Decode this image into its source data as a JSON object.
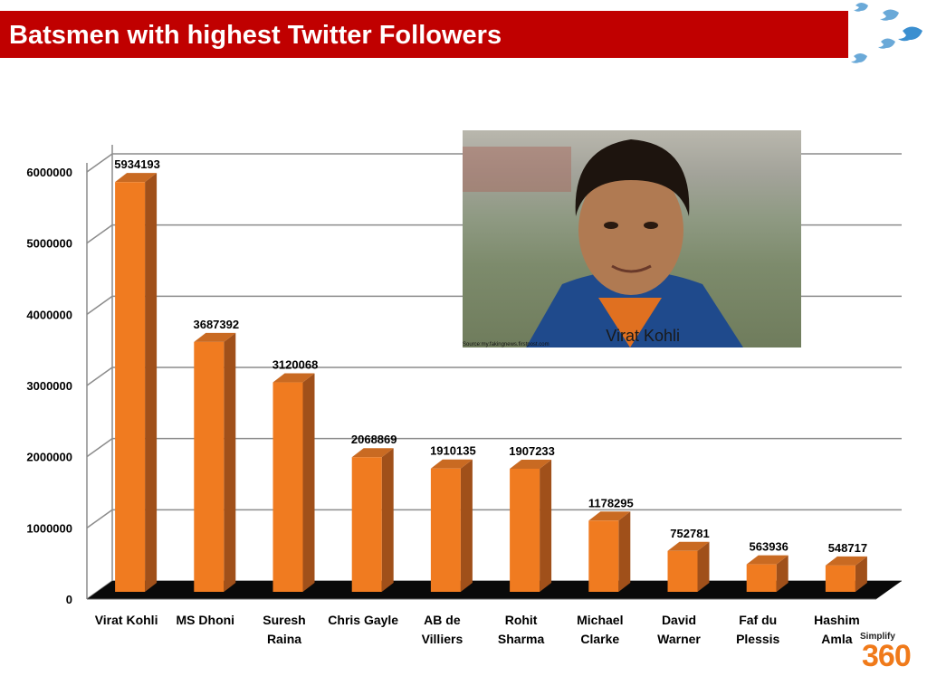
{
  "header": {
    "title": "Batsmen with highest Twitter Followers"
  },
  "photo": {
    "caption": "Virat Kohli",
    "source": "Source:my.fakingnews.firstpost.com"
  },
  "brand": {
    "top": "Simplify",
    "main": "360"
  },
  "colors": {
    "title_bar": "#c00000",
    "bar_front": "#f07b20",
    "bar_side": "#a0501a",
    "bar_top": "#c96a22",
    "floor": "#0a0a0a",
    "grid": "#8c8c8c",
    "brand": "#f07a1a"
  },
  "chart_data": {
    "type": "bar",
    "style": "3d",
    "categories": [
      [
        "Virat Kohli"
      ],
      [
        "MS Dhoni"
      ],
      [
        "Suresh",
        "Raina"
      ],
      [
        "Chris Gayle"
      ],
      [
        "AB de",
        "Villiers"
      ],
      [
        "Rohit",
        "Sharma"
      ],
      [
        "Michael",
        "Clarke"
      ],
      [
        "David",
        "Warner"
      ],
      [
        "Faf du",
        "Plessis"
      ],
      [
        "Hashim",
        "Amla"
      ]
    ],
    "values": [
      5934193,
      3687392,
      3120068,
      2068869,
      1910135,
      1907233,
      1178295,
      752781,
      563936,
      548717
    ],
    "value_labels": [
      "5934193",
      "3687392",
      "3120068",
      "2068869",
      "1910135",
      "1907233",
      "1178295",
      "752781",
      "563936",
      "548717"
    ],
    "yticks": [
      "0",
      "1000000",
      "2000000",
      "3000000",
      "4000000",
      "5000000",
      "6000000"
    ],
    "ylim": [
      0,
      6000000
    ],
    "grid": true,
    "legend": "none"
  }
}
